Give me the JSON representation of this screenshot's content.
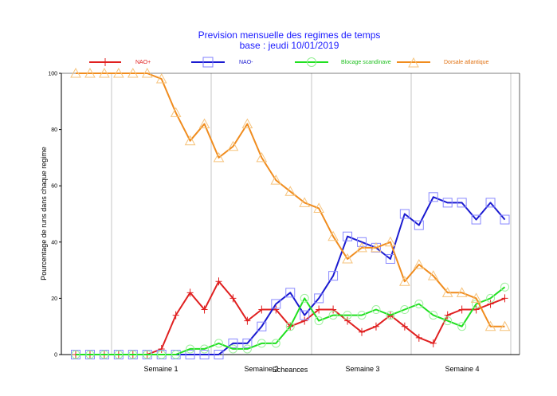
{
  "chart_data": {
    "type": "line",
    "title": "Prevision mensuelle des regimes de temps",
    "subtitle": "base : jeudi 10/01/2019",
    "xlabel": "Echeances",
    "ylabel": "Pourcentage de runs dans chaque regime",
    "ylim": [
      0,
      100
    ],
    "yticks": [
      "0",
      "20",
      "40",
      "60",
      "80",
      "100"
    ],
    "week_labels": [
      "Semaine 1",
      "Semaine 2",
      "Semaine 3",
      "Semaine 4"
    ],
    "grid": "vertical",
    "x": [
      1,
      2,
      3,
      4,
      5,
      6,
      7,
      8,
      9,
      10,
      11,
      12,
      13,
      14,
      15,
      16,
      17,
      18,
      19,
      20,
      21,
      22,
      23,
      24,
      25,
      26,
      27,
      28,
      29,
      30,
      31,
      32
    ],
    "series": [
      {
        "name": "NAO+",
        "color": "#e02020",
        "marker": "plus",
        "values": [
          0,
          0,
          0,
          0,
          0,
          0,
          2,
          14,
          22,
          16,
          26,
          20,
          12,
          16,
          16,
          10,
          12,
          16,
          16,
          12,
          8,
          10,
          14,
          10,
          6,
          4,
          14,
          16,
          16,
          18,
          20,
          null
        ]
      },
      {
        "name": "NAO-",
        "color": "#1a1ad0",
        "marker": "square",
        "values": [
          0,
          0,
          0,
          0,
          0,
          0,
          0,
          0,
          0,
          0,
          0,
          4,
          4,
          10,
          18,
          22,
          14,
          20,
          28,
          42,
          40,
          38,
          34,
          50,
          46,
          56,
          54,
          54,
          48,
          54,
          48,
          null
        ]
      },
      {
        "name": "Blocage scandinave",
        "color": "#20e020",
        "marker": "circle",
        "values": [
          0,
          0,
          0,
          0,
          0,
          0,
          0,
          0,
          2,
          2,
          4,
          2,
          2,
          4,
          4,
          10,
          20,
          12,
          14,
          14,
          14,
          16,
          14,
          16,
          18,
          14,
          12,
          10,
          18,
          20,
          24,
          null
        ]
      },
      {
        "name": "Dorsale atlantique",
        "color": "#f08c1e",
        "marker": "triangle",
        "values": [
          100,
          100,
          100,
          100,
          100,
          100,
          98,
          86,
          76,
          82,
          70,
          74,
          82,
          70,
          62,
          58,
          54,
          52,
          42,
          34,
          38,
          38,
          40,
          26,
          32,
          28,
          22,
          22,
          20,
          10,
          10,
          null
        ]
      }
    ]
  }
}
